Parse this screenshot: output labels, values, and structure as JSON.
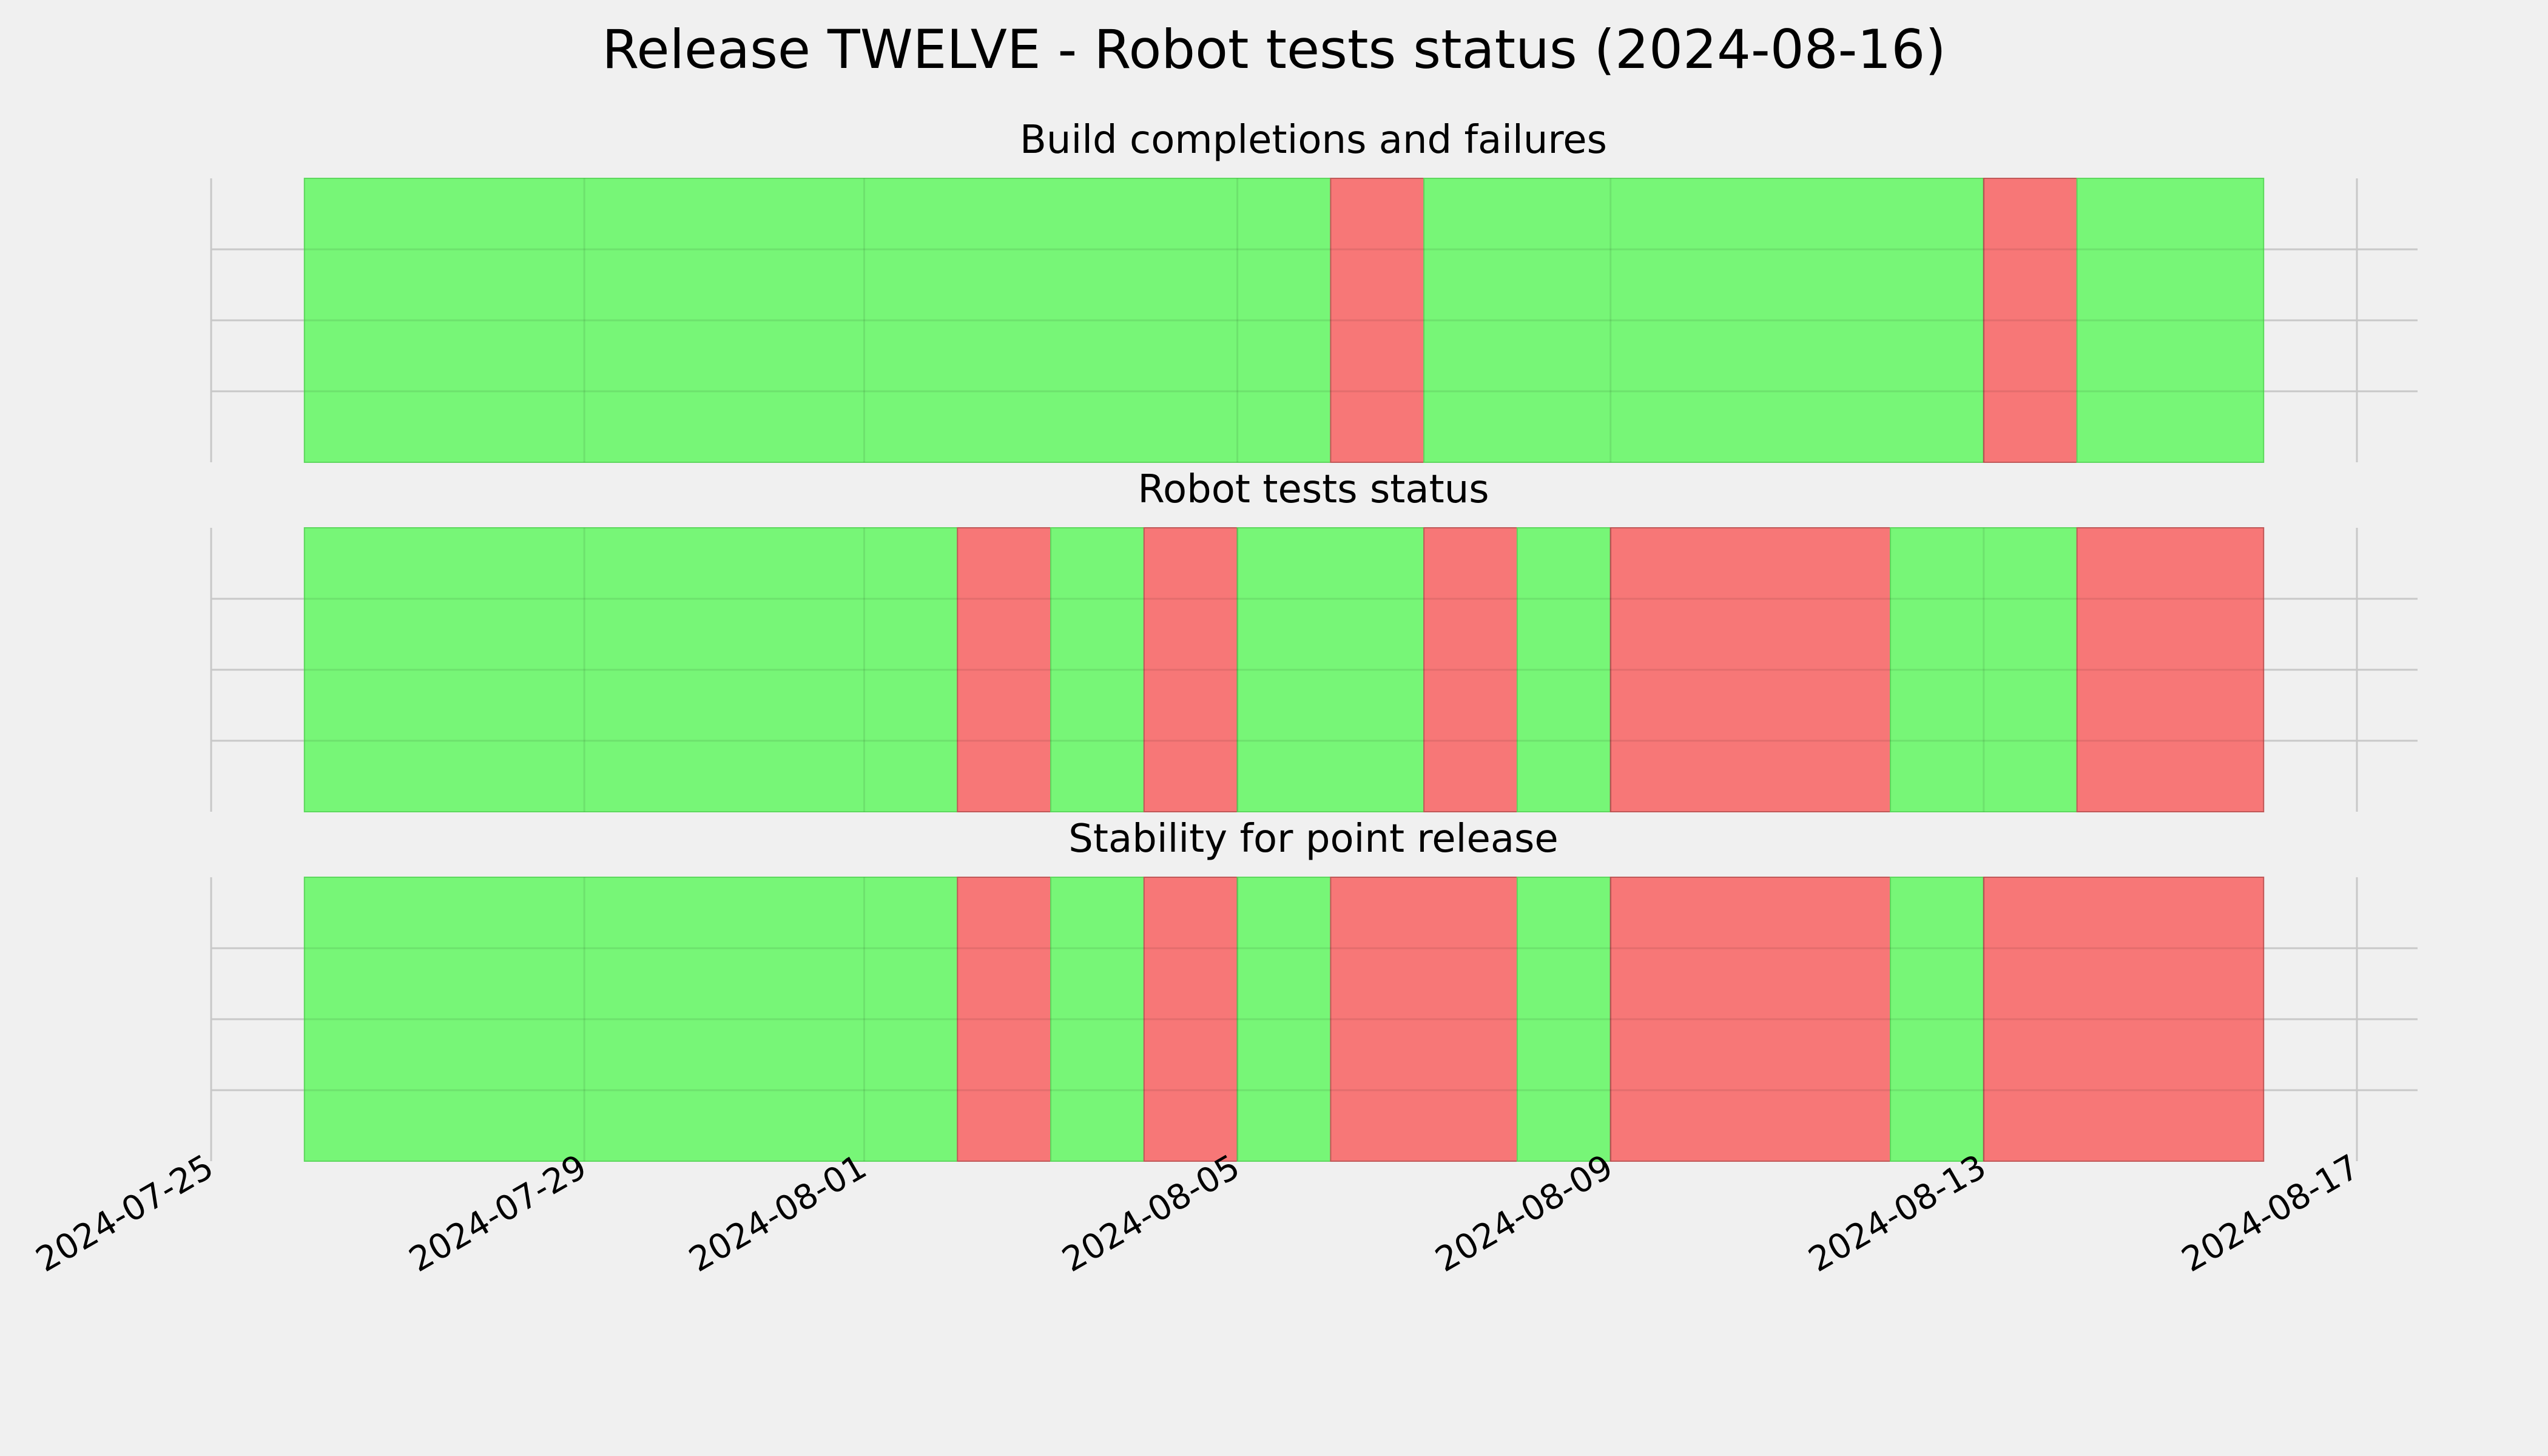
{
  "chart_data": {
    "type": "timeline",
    "title": "Release TWELVE - Robot tests status (2024-08-16)",
    "xlim": [
      "2024-07-25",
      "2024-08-17"
    ],
    "x_ticks": [
      "2024-07-25",
      "2024-07-29",
      "2024-08-01",
      "2024-08-05",
      "2024-08-09",
      "2024-08-13",
      "2024-08-17"
    ],
    "grid": true,
    "colors": {
      "pass": "#77f677",
      "fail": "#f77777",
      "background": "#f0f0f0",
      "grid": "#c8c8c8"
    },
    "panels": [
      {
        "title": "Build completions and failures",
        "segments": [
          {
            "start": "2024-07-26",
            "end": "2024-08-06",
            "status": "pass"
          },
          {
            "start": "2024-08-06",
            "end": "2024-08-07",
            "status": "fail"
          },
          {
            "start": "2024-08-07",
            "end": "2024-08-13",
            "status": "pass"
          },
          {
            "start": "2024-08-13",
            "end": "2024-08-14",
            "status": "fail"
          },
          {
            "start": "2024-08-14",
            "end": "2024-08-16",
            "status": "pass"
          }
        ]
      },
      {
        "title": "Robot tests status",
        "segments": [
          {
            "start": "2024-07-26",
            "end": "2024-08-02",
            "status": "pass"
          },
          {
            "start": "2024-08-02",
            "end": "2024-08-03",
            "status": "fail"
          },
          {
            "start": "2024-08-03",
            "end": "2024-08-04",
            "status": "pass"
          },
          {
            "start": "2024-08-04",
            "end": "2024-08-05",
            "status": "fail"
          },
          {
            "start": "2024-08-05",
            "end": "2024-08-07",
            "status": "pass"
          },
          {
            "start": "2024-08-07",
            "end": "2024-08-08",
            "status": "fail"
          },
          {
            "start": "2024-08-08",
            "end": "2024-08-09",
            "status": "pass"
          },
          {
            "start": "2024-08-09",
            "end": "2024-08-12",
            "status": "fail"
          },
          {
            "start": "2024-08-12",
            "end": "2024-08-14",
            "status": "pass"
          },
          {
            "start": "2024-08-14",
            "end": "2024-08-16",
            "status": "fail"
          }
        ]
      },
      {
        "title": "Stability for point release",
        "segments": [
          {
            "start": "2024-07-26",
            "end": "2024-08-02",
            "status": "pass"
          },
          {
            "start": "2024-08-02",
            "end": "2024-08-03",
            "status": "fail"
          },
          {
            "start": "2024-08-03",
            "end": "2024-08-04",
            "status": "pass"
          },
          {
            "start": "2024-08-04",
            "end": "2024-08-05",
            "status": "fail"
          },
          {
            "start": "2024-08-05",
            "end": "2024-08-06",
            "status": "pass"
          },
          {
            "start": "2024-08-06",
            "end": "2024-08-08",
            "status": "fail"
          },
          {
            "start": "2024-08-08",
            "end": "2024-08-09",
            "status": "pass"
          },
          {
            "start": "2024-08-09",
            "end": "2024-08-12",
            "status": "fail"
          },
          {
            "start": "2024-08-12",
            "end": "2024-08-13",
            "status": "pass"
          },
          {
            "start": "2024-08-13",
            "end": "2024-08-16",
            "status": "fail"
          }
        ]
      }
    ]
  }
}
